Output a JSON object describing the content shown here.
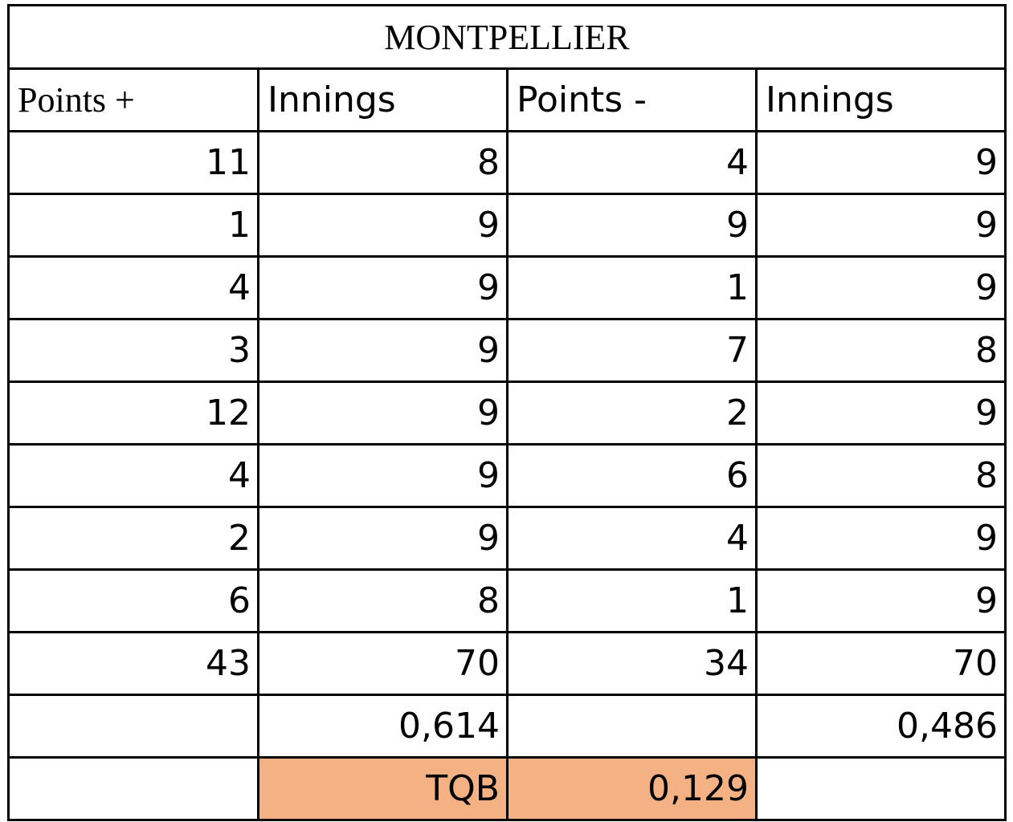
{
  "title": "MONTPELLIER",
  "headers": [
    "Points +",
    "Innings",
    "Points -",
    "Innings"
  ],
  "rows": [
    [
      "11",
      "8",
      "4",
      "9"
    ],
    [
      "1",
      "9",
      "9",
      "9"
    ],
    [
      "4",
      "9",
      "1",
      "9"
    ],
    [
      "3",
      "9",
      "7",
      "8"
    ],
    [
      "12",
      "9",
      "2",
      "9"
    ],
    [
      "4",
      "9",
      "6",
      "8"
    ],
    [
      "2",
      "9",
      "4",
      "9"
    ],
    [
      "6",
      "8",
      "1",
      "9"
    ],
    [
      "43",
      "70",
      "34",
      "70"
    ],
    [
      "",
      "0,614",
      "",
      "0,486"
    ],
    [
      "",
      "TQB",
      "0,129",
      ""
    ]
  ],
  "colors": {
    "highlight": "#f4b183",
    "border": "#000000"
  }
}
